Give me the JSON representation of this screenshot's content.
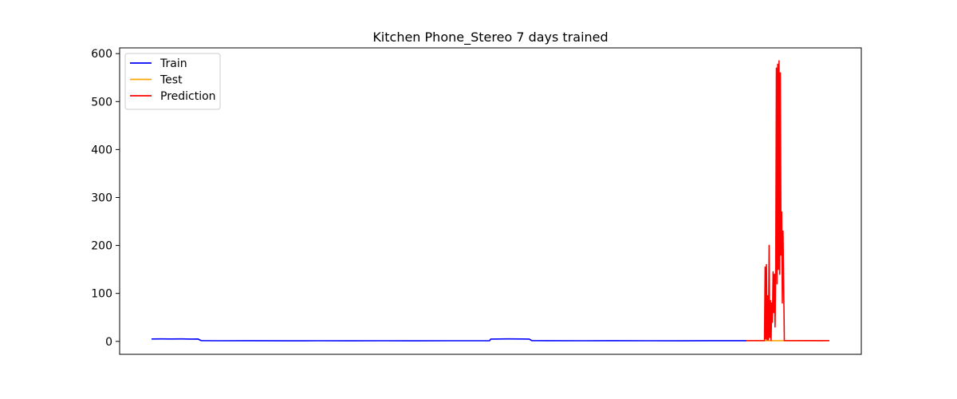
{
  "chart_data": {
    "type": "line",
    "title": "Kitchen Phone_Stereo 7 days trained",
    "xlabel": "",
    "ylabel": "",
    "x_ticks_visible": false,
    "xlim": [
      0,
      1000
    ],
    "ylim": [
      -27,
      612
    ],
    "y_ticks": [
      0,
      100,
      200,
      300,
      400,
      500,
      600
    ],
    "y_tick_labels": [
      "0",
      "100",
      "200",
      "300",
      "400",
      "500",
      "600"
    ],
    "grid": false,
    "legend": {
      "placement": "top-left",
      "entries": [
        "Train",
        "Test",
        "Prediction"
      ]
    },
    "series": [
      {
        "name": "Train",
        "color": "#0000ff",
        "points": [
          [
            0,
            5
          ],
          [
            15,
            5.2
          ],
          [
            30,
            5
          ],
          [
            45,
            5.1
          ],
          [
            60,
            4.8
          ],
          [
            70,
            5
          ],
          [
            75,
            1.5
          ],
          [
            100,
            1.3
          ],
          [
            150,
            1.4
          ],
          [
            200,
            1.2
          ],
          [
            250,
            1.3
          ],
          [
            300,
            1.2
          ],
          [
            350,
            1.3
          ],
          [
            400,
            1.2
          ],
          [
            450,
            1.3
          ],
          [
            510,
            1.3
          ],
          [
            512,
            4.8
          ],
          [
            540,
            5.2
          ],
          [
            560,
            4.9
          ],
          [
            570,
            4.7
          ],
          [
            574,
            1.5
          ],
          [
            600,
            1.4
          ],
          [
            650,
            1.3
          ],
          [
            700,
            1.4
          ],
          [
            750,
            1.3
          ],
          [
            800,
            1.2
          ],
          [
            850,
            1.4
          ],
          [
            898,
            1.4
          ]
        ]
      },
      {
        "name": "Test",
        "color": "#ffa500",
        "points": [
          [
            898,
            1.5
          ],
          [
            920,
            1.6
          ],
          [
            940,
            1.4
          ],
          [
            960,
            1.6
          ],
          [
            980,
            1.4
          ],
          [
            1000,
            1.5
          ],
          [
            1023,
            1.5
          ]
        ]
      },
      {
        "name": "Prediction",
        "color": "#ff0000",
        "points": [
          [
            898,
            1.5
          ],
          [
            925,
            1.5
          ],
          [
            926,
            155
          ],
          [
            927,
            5
          ],
          [
            928,
            160
          ],
          [
            929,
            3
          ],
          [
            930,
            95
          ],
          [
            931,
            3
          ],
          [
            932,
            200
          ],
          [
            933,
            8
          ],
          [
            934,
            85
          ],
          [
            935,
            2
          ],
          [
            936,
            80
          ],
          [
            937,
            40
          ],
          [
            938,
            145
          ],
          [
            939,
            60
          ],
          [
            940,
            140
          ],
          [
            941,
            30
          ],
          [
            942,
            150
          ],
          [
            943,
            570
          ],
          [
            944,
            120
          ],
          [
            945,
            578
          ],
          [
            946,
            150
          ],
          [
            947,
            585
          ],
          [
            948,
            140
          ],
          [
            949,
            560
          ],
          [
            950,
            180
          ],
          [
            951,
            270
          ],
          [
            952,
            80
          ],
          [
            953,
            230
          ],
          [
            954,
            120
          ],
          [
            955,
            1.5
          ],
          [
            970,
            1.5
          ],
          [
            990,
            1.6
          ],
          [
            1010,
            1.4
          ],
          [
            1023,
            1.5
          ]
        ]
      }
    ]
  }
}
